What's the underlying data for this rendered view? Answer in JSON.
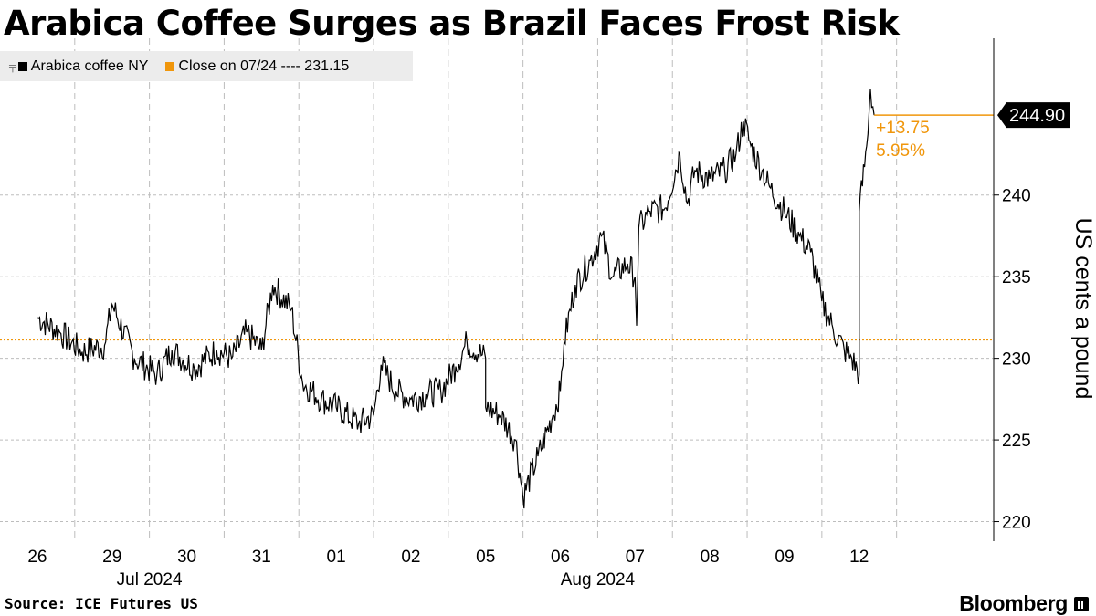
{
  "colors": {
    "series": "#000000",
    "reference": "#f0960b",
    "gridline": "#bdbdbd",
    "legend_bg": "#ececec"
  },
  "chart_data": {
    "type": "line",
    "title": "Arabica Coffee Surges as Brazil Faces Frost Risk",
    "series": [
      {
        "name": "Arabica coffee NY",
        "color": "#000000",
        "knots": [
          [
            0.0,
            232.5
          ],
          [
            0.3,
            231.6
          ],
          [
            0.6,
            230.4
          ],
          [
            0.9,
            230.8
          ],
          [
            1.0,
            233.3
          ],
          [
            1.3,
            230.0
          ],
          [
            1.6,
            229.0
          ],
          [
            1.8,
            230.5
          ],
          [
            2.1,
            229.4
          ],
          [
            2.4,
            230.5
          ],
          [
            2.6,
            230.0
          ],
          [
            2.8,
            231.6
          ],
          [
            3.0,
            230.5
          ],
          [
            3.15,
            234.5
          ],
          [
            3.4,
            233.0
          ],
          [
            3.55,
            228.5
          ],
          [
            3.8,
            227.5
          ],
          [
            4.0,
            227.0
          ],
          [
            4.3,
            226.0
          ],
          [
            4.5,
            226.5
          ],
          [
            4.6,
            229.6
          ],
          [
            4.8,
            228.0
          ],
          [
            5.0,
            227.5
          ],
          [
            5.2,
            227.8
          ],
          [
            5.4,
            228.0
          ],
          [
            5.6,
            229.5
          ],
          [
            5.75,
            231.0
          ],
          [
            6.0,
            230.0
          ],
          [
            6.0,
            227.0
          ],
          [
            6.2,
            226.5
          ],
          [
            6.4,
            225.0
          ],
          [
            6.5,
            221.5
          ],
          [
            6.7,
            224.0
          ],
          [
            6.9,
            226.5
          ],
          [
            7.0,
            228.0
          ],
          [
            7.05,
            231.0
          ],
          [
            7.2,
            234.5
          ],
          [
            7.4,
            236.0
          ],
          [
            7.55,
            237.5
          ],
          [
            7.7,
            235.0
          ],
          [
            7.9,
            235.8
          ],
          [
            8.0,
            235.0
          ],
          [
            8.02,
            232.0
          ],
          [
            8.05,
            238.0
          ],
          [
            8.2,
            239.0
          ],
          [
            8.4,
            239.2
          ],
          [
            8.6,
            242.5
          ],
          [
            8.7,
            239.5
          ],
          [
            8.8,
            241.5
          ],
          [
            9.0,
            241.0
          ],
          [
            9.2,
            241.5
          ],
          [
            9.35,
            242.5
          ],
          [
            9.45,
            244.5
          ],
          [
            9.55,
            243.0
          ],
          [
            9.7,
            241.5
          ],
          [
            9.8,
            240.5
          ],
          [
            10.0,
            239.0
          ],
          [
            10.2,
            237.5
          ],
          [
            10.35,
            236.5
          ],
          [
            10.5,
            233.5
          ],
          [
            10.65,
            231.8
          ],
          [
            10.8,
            230.5
          ],
          [
            10.9,
            230.0
          ],
          [
            11.0,
            229.0
          ],
          [
            11.0,
            239.0
          ],
          [
            11.1,
            243.0
          ],
          [
            11.15,
            246.5
          ],
          [
            11.2,
            244.9
          ]
        ]
      }
    ],
    "reference_line": {
      "label": "Close on 07/24",
      "value": 231.15,
      "display": "Close on 07/24 ---- 231.15"
    },
    "last_value": {
      "value": 244.9,
      "label": "244.90"
    },
    "change": {
      "absolute": "+13.75",
      "percent": "5.95%"
    },
    "y_axis": {
      "label": "US cents a pound",
      "ticks": [
        220,
        225,
        230,
        235,
        240
      ],
      "range": [
        218.8,
        249.6
      ]
    },
    "x_axis": {
      "range": [
        -0.5,
        12.8
      ],
      "ticks": [
        {
          "pos": 0,
          "label": "26"
        },
        {
          "pos": 1,
          "label": "29"
        },
        {
          "pos": 2,
          "label": "30"
        },
        {
          "pos": 3,
          "label": "31"
        },
        {
          "pos": 4,
          "label": "01"
        },
        {
          "pos": 5,
          "label": "02"
        },
        {
          "pos": 6,
          "label": "05"
        },
        {
          "pos": 7,
          "label": "06"
        },
        {
          "pos": 8,
          "label": "07"
        },
        {
          "pos": 9,
          "label": "08"
        },
        {
          "pos": 10,
          "label": "09"
        },
        {
          "pos": 11,
          "label": "12"
        }
      ],
      "gridlines": [
        0.5,
        1.5,
        2.5,
        3.5,
        4.5,
        5.5,
        6.5,
        7.5,
        8.5,
        9.5,
        10.5,
        11.5
      ],
      "months": [
        {
          "center": 1.5,
          "label": "Jul 2024"
        },
        {
          "center": 7.5,
          "label": "Aug 2024"
        }
      ]
    }
  },
  "legend": {
    "series_label": "Arabica coffee NY",
    "reference_label": "Close on 07/24 ---- 231.15"
  },
  "footer": {
    "source": "Source: ICE Futures US",
    "brand": "Bloomberg"
  }
}
